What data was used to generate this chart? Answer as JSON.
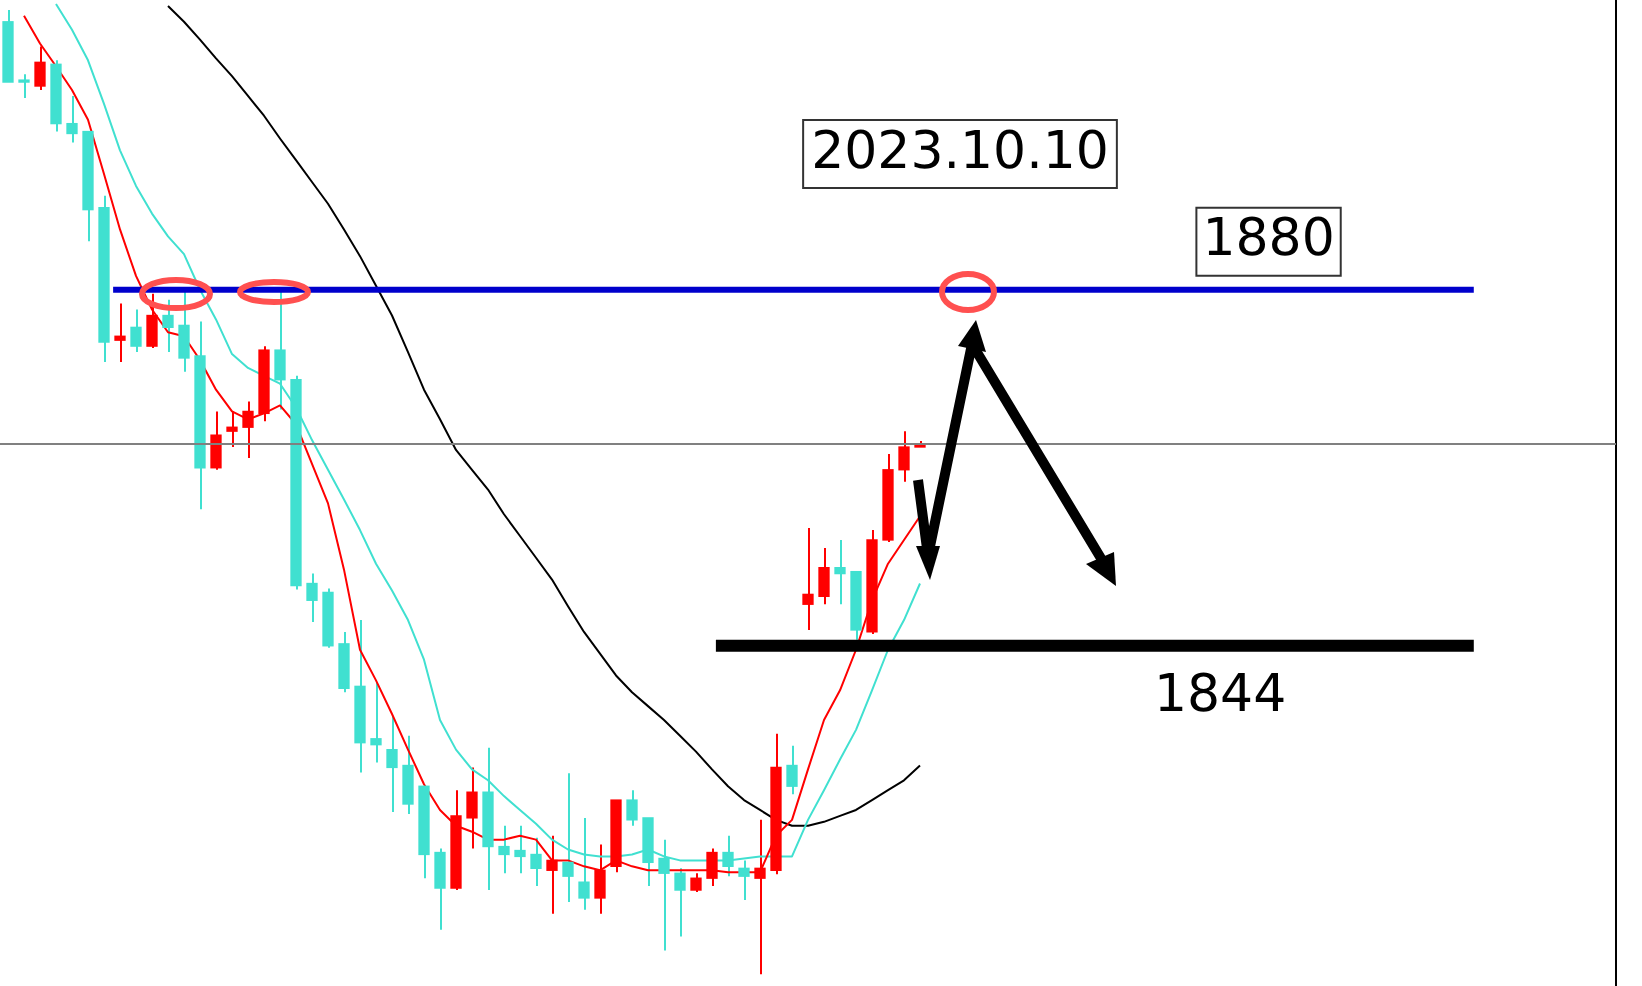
{
  "chart_data": {
    "type": "candlestick",
    "annotations": [
      "2023.10.10"
    ],
    "categories": [
      null,
      null,
      null,
      null,
      null,
      null,
      null,
      null,
      null,
      null,
      null,
      null,
      null,
      null,
      null,
      null,
      null,
      null,
      null,
      null,
      null,
      null,
      null,
      null,
      null,
      null,
      null,
      null,
      null,
      null,
      null,
      null,
      null,
      null,
      null,
      null,
      null,
      null,
      null,
      null,
      null,
      null,
      null,
      null,
      null,
      null,
      null,
      null,
      null,
      null,
      null,
      null,
      null,
      null,
      null,
      null,
      null,
      null,
      null,
      null,
      null,
      null,
      null,
      null,
      null,
      null,
      null,
      null,
      null,
      null,
      null,
      null,
      null,
      null,
      null,
      null,
      null,
      null,
      null,
      null,
      null,
      null,
      null,
      null,
      null,
      null,
      null,
      null,
      null,
      null,
      null,
      null,
      null,
      null,
      null,
      null,
      null,
      null,
      null,
      null,
      null
    ],
    "ohlc": [
      [
        1907.1,
        1908.3,
        1901.0,
        1901.0
      ],
      [
        1901.2,
        1901.8,
        1899.4,
        1901.0
      ],
      [
        1900.6,
        1904.6,
        1900.2,
        1903.0
      ],
      [
        1902.8,
        1903.2,
        1896.0,
        1896.8
      ],
      [
        1896.8,
        1899.6,
        1894.9,
        1895.8
      ],
      [
        1896.0,
        1896.0,
        1884.9,
        1888.1
      ],
      [
        1888.3,
        1889.5,
        1872.7,
        1874.7
      ],
      [
        1874.9,
        1878.6,
        1872.7,
        1875.3
      ],
      [
        1876.2,
        1878.0,
        1873.7,
        1874.3
      ],
      [
        1874.3,
        1879.6,
        1874.1,
        1877.4
      ],
      [
        1877.4,
        1879.0,
        1873.7,
        1876.2
      ],
      [
        1876.4,
        1880.0,
        1871.7,
        1873.1
      ],
      [
        1873.3,
        1876.8,
        1857.8,
        1862.0
      ],
      [
        1862.0,
        1867.7,
        1861.8,
        1865.3
      ],
      [
        1865.7,
        1867.7,
        1864.1,
        1866.1
      ],
      [
        1866.1,
        1868.7,
        1863.0,
        1867.7
      ],
      [
        1867.5,
        1874.3,
        1866.7,
        1873.9
      ],
      [
        1873.9,
        1880.0,
        1867.9,
        1870.9
      ],
      [
        1870.9,
        1871.3,
        1849.7,
        1850.1
      ],
      [
        1850.3,
        1851.3,
        1846.4,
        1848.6
      ],
      [
        1849.4,
        1849.8,
        1843.8,
        1844.0
      ],
      [
        1844.2,
        1845.4,
        1839.3,
        1839.7
      ],
      [
        1839.9,
        1846.6,
        1831.2,
        1834.2
      ],
      [
        1834.6,
        1840.3,
        1832.2,
        1834.0
      ],
      [
        1833.5,
        1836.9,
        1827.2,
        1831.7
      ],
      [
        1831.9,
        1834.9,
        1827.0,
        1828.0
      ],
      [
        1829.8,
        1829.8,
        1820.5,
        1822.9
      ],
      [
        1823.1,
        1823.5,
        1815.3,
        1819.5
      ],
      [
        1819.5,
        1829.4,
        1819.3,
        1826.8
      ],
      [
        1826.6,
        1831.7,
        1823.5,
        1829.2
      ],
      [
        1829.2,
        1833.7,
        1819.3,
        1823.7
      ],
      [
        1823.7,
        1825.8,
        1821.0,
        1822.9
      ],
      [
        1823.3,
        1825.8,
        1821.0,
        1822.7
      ],
      [
        1822.9,
        1824.6,
        1819.7,
        1821.5
      ],
      [
        1821.3,
        1824.8,
        1816.9,
        1822.3
      ],
      [
        1822.1,
        1831.1,
        1818.1,
        1820.7
      ],
      [
        1820.1,
        1826.6,
        1817.3,
        1818.5
      ],
      [
        1818.5,
        1823.9,
        1816.9,
        1821.3
      ],
      [
        1821.7,
        1828.4,
        1821.1,
        1828.4
      ],
      [
        1828.4,
        1829.4,
        1825.8,
        1826.4
      ],
      [
        1826.6,
        1826.6,
        1819.7,
        1822.1
      ],
      [
        1822.5,
        1824.4,
        1813.2,
        1821.0
      ],
      [
        1821.0,
        1821.5,
        1814.6,
        1819.3
      ],
      [
        1819.3,
        1821.0,
        1819.1,
        1820.5
      ],
      [
        1820.5,
        1823.5,
        1819.7,
        1823.1
      ],
      [
        1823.1,
        1824.8,
        1820.7,
        1821.7
      ],
      [
        1821.5,
        1822.3,
        1818.3,
        1820.7
      ],
      [
        1820.5,
        1826.4,
        1810.8,
        1821.5
      ],
      [
        1821.3,
        1835.1,
        1820.9,
        1831.7
      ],
      [
        1831.9,
        1833.9,
        1829.0,
        1829.8
      ],
      [
        1848.2,
        1855.9,
        1845.6,
        1849.2
      ],
      [
        1849.0,
        1853.9,
        1848.2,
        1851.9
      ],
      [
        1851.9,
        1854.7,
        1848.2,
        1851.3
      ],
      [
        1851.5,
        1851.5,
        1844.6,
        1845.6
      ],
      [
        1845.4,
        1855.7,
        1845.2,
        1854.7
      ],
      [
        1854.7,
        1863.4,
        1854.5,
        1861.8
      ],
      [
        1861.8,
        1865.7,
        1860.6,
        1864.1
      ],
      [
        1864.1,
        1864.7,
        1864.1,
        1864.3
      ],
      null,
      null,
      null,
      null,
      null,
      null,
      null,
      null,
      null,
      null,
      null,
      null,
      null,
      null,
      null,
      null,
      null,
      null,
      null,
      null,
      null,
      null,
      null,
      null,
      null,
      null,
      null,
      null,
      null,
      null,
      null,
      null,
      null,
      null,
      null,
      null,
      null,
      null,
      null,
      null,
      null,
      null,
      null
    ],
    "colors": [
      "#40e0d0",
      "#40e0d0",
      "#ff0000",
      "#40e0d0",
      "#40e0d0",
      "#40e0d0",
      "#40e0d0",
      "#ff0000",
      "#40e0d0",
      "#ff0000",
      "#40e0d0",
      "#40e0d0",
      "#40e0d0",
      "#ff0000",
      "#ff0000",
      "#ff0000",
      "#ff0000",
      "#40e0d0",
      "#40e0d0",
      "#40e0d0",
      "#40e0d0",
      "#40e0d0",
      "#40e0d0",
      "#40e0d0",
      "#40e0d0",
      "#40e0d0",
      "#40e0d0",
      "#40e0d0",
      "#ff0000",
      "#ff0000",
      "#40e0d0",
      "#40e0d0",
      "#40e0d0",
      "#40e0d0",
      "#ff0000",
      "#40e0d0",
      "#40e0d0",
      "#ff0000",
      "#ff0000",
      "#40e0d0",
      "#40e0d0",
      "#40e0d0",
      "#40e0d0",
      "#ff0000",
      "#ff0000",
      "#40e0d0",
      "#40e0d0",
      "#ff0000",
      "#ff0000",
      "#40e0d0",
      "#ff0000",
      "#ff0000",
      "#40e0d0",
      "#40e0d0",
      "#ff0000",
      "#ff0000",
      "#ff0000",
      "#ff0000",
      null,
      null,
      null,
      null,
      null,
      null,
      null,
      null,
      null,
      null,
      null,
      null,
      null,
      null,
      null,
      null,
      null,
      null,
      null,
      null,
      null,
      null,
      null,
      null,
      null,
      null,
      null,
      null,
      null,
      null,
      null,
      null,
      null,
      null,
      null,
      null,
      null,
      null,
      null,
      null,
      null,
      null,
      null
    ],
    "series": [
      {
        "type": "line",
        "color": "#ff0000",
        "values": [
          null,
          1907.7,
          1904.9,
          1902.6,
          1900.2,
          1897.2,
          1891.7,
          1886.1,
          1881.4,
          1878.0,
          1875.7,
          1875.3,
          1872.9,
          1869.9,
          1867.7,
          1866.9,
          1867.5,
          1868.3,
          1866.4,
          1862.4,
          1858.4,
          1851.7,
          1843.6,
          1840.5,
          1837.1,
          1833.5,
          1830.0,
          1827.4,
          1825.8,
          1825.2,
          1824.4,
          1824.4,
          1824.8,
          1824.4,
          1822.3,
          1822.3,
          1821.7,
          1821.3,
          1822.3,
          1821.7,
          1821.3,
          1821.3,
          1821.3,
          1821.3,
          1821.3,
          1821.1,
          1821.1,
          1821.1,
          1824.8,
          1826.4,
          1831.5,
          1836.5,
          1839.5,
          1843.6,
          1848.6,
          1852.3,
          1854.7,
          1857.1,
          null,
          null,
          null,
          null,
          null,
          null,
          null,
          null,
          null,
          null,
          null,
          null,
          null,
          null,
          null,
          null,
          null,
          null,
          null,
          null,
          null,
          null,
          null,
          null,
          null,
          null,
          null,
          null,
          null,
          null,
          null,
          null,
          null,
          null,
          null,
          null,
          null,
          null,
          null,
          null,
          null,
          null,
          null
        ]
      },
      {
        "type": "line",
        "color": "#40e0d0",
        "values": [
          null,
          null,
          null,
          1908.9,
          1906.3,
          1903.2,
          1898.8,
          1894.1,
          1890.5,
          1887.7,
          1885.4,
          1883.6,
          1880.0,
          1877.0,
          1873.5,
          1872.1,
          1871.3,
          1870.5,
          1868.1,
          1864.8,
          1861.8,
          1858.8,
          1855.7,
          1852.3,
          1849.6,
          1846.6,
          1842.6,
          1836.5,
          1833.5,
          1831.5,
          1830.4,
          1828.8,
          1827.4,
          1826.0,
          1824.4,
          1823.4,
          1822.9,
          1822.7,
          1822.7,
          1822.9,
          1823.4,
          1822.7,
          1822.3,
          1822.3,
          1822.3,
          1822.3,
          1822.5,
          1822.7,
          1822.7,
          1822.7,
          1826.4,
          1829.4,
          1832.5,
          1835.5,
          1839.5,
          1843.6,
          1846.6,
          1850.3,
          null,
          null,
          null,
          null,
          null,
          null,
          null,
          null,
          null,
          null,
          null,
          null,
          null,
          null,
          null,
          null,
          null,
          null,
          null,
          null,
          null,
          null,
          null,
          null,
          null,
          null,
          null,
          null,
          null,
          null,
          null,
          null,
          null,
          null,
          null,
          null,
          null,
          null,
          null,
          null,
          null,
          null,
          null
        ]
      },
      {
        "type": "line",
        "color": "#000000",
        "values": [
          null,
          null,
          null,
          null,
          null,
          null,
          null,
          null,
          null,
          null,
          1908.7,
          1907.1,
          1905.3,
          1903.4,
          1901.6,
          1899.6,
          1897.6,
          1895.3,
          1893.1,
          1890.9,
          1888.7,
          1886.1,
          1883.4,
          1880.4,
          1877.4,
          1873.7,
          1869.9,
          1866.9,
          1863.8,
          1861.8,
          1859.8,
          1857.3,
          1855.1,
          1852.9,
          1850.7,
          1848.0,
          1845.4,
          1843.2,
          1841.0,
          1839.3,
          1837.9,
          1836.5,
          1834.9,
          1833.3,
          1831.5,
          1829.8,
          1828.4,
          1827.4,
          1826.4,
          1825.8,
          1825.8,
          1826.2,
          1826.8,
          1827.4,
          1828.4,
          1829.4,
          1830.4,
          1831.9,
          null,
          null,
          null,
          null,
          null,
          null,
          null,
          null,
          null,
          null,
          null,
          null,
          null,
          null,
          null,
          null,
          null,
          null,
          null,
          null,
          null,
          null,
          null,
          null,
          null,
          null,
          null,
          null,
          null,
          null,
          null,
          null,
          null,
          null,
          null,
          null,
          null,
          null,
          null,
          null,
          null,
          null,
          null
        ]
      }
    ],
    "ylim": [
      1809.6,
      1909.3
    ],
    "ref_lines": [
      {
        "axis": "y",
        "value": 1880,
        "label": "1880",
        "color": "#0000cc"
      },
      {
        "axis": "y",
        "value": 1844,
        "label": "1844",
        "color": "#000000"
      },
      {
        "axis": "y",
        "value": 1864.4,
        "color": "#808080"
      }
    ],
    "marker": "none",
    "grid": false,
    "legend": false
  }
}
